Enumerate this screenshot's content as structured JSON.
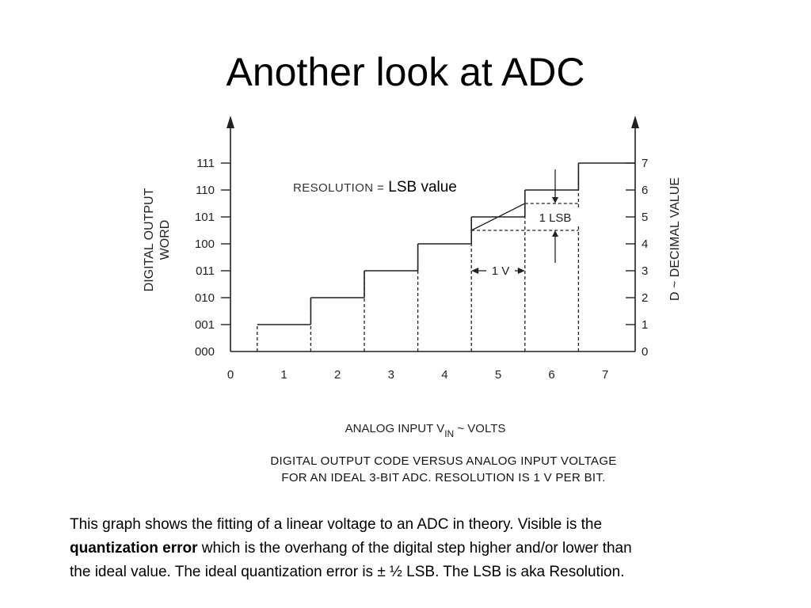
{
  "slide": {
    "title": "Another look at ADC"
  },
  "chart_data": {
    "type": "step",
    "x": [
      0,
      1,
      2,
      3,
      4,
      5,
      6,
      7
    ],
    "codes": [
      "000",
      "001",
      "010",
      "011",
      "100",
      "101",
      "110",
      "111"
    ],
    "decimal": [
      0,
      1,
      2,
      3,
      4,
      5,
      6,
      7
    ],
    "transitions": [
      0.5,
      1.5,
      2.5,
      3.5,
      4.5,
      5.5,
      6.5
    ],
    "xlim": [
      0,
      7.4
    ],
    "ylim": [
      0,
      7
    ],
    "xlabel_main": "ANALOG INPUT V",
    "xlabel_sub": "IN",
    "xlabel_tail": " ~ VOLTS",
    "ylabel_left_line1": "DIGITAL OUTPUT",
    "ylabel_left_line2": "WORD",
    "ylabel_right": "D ~ DECIMAL VALUE",
    "annotations": {
      "one_v": "1 V",
      "one_lsb": "1 LSB"
    },
    "resolution_label": "RESOLUTION =",
    "resolution_value": "LSB value",
    "caption_line1": "DIGITAL OUTPUT CODE VERSUS ANALOG INPUT VOLTAGE",
    "caption_line2": "FOR AN IDEAL 3-BIT ADC. RESOLUTION IS 1 V PER BIT.",
    "grid": false
  },
  "body": {
    "p1": "This graph shows the fitting of a linear voltage to an ADC in theory.  Visible is the",
    "bold": "quantization error",
    "p2": " which is the overhang of the digital step higher and/or lower than",
    "p3": "the ideal value.  The ideal quantization error is ± ½ LSB.  The LSB is aka Resolution."
  }
}
